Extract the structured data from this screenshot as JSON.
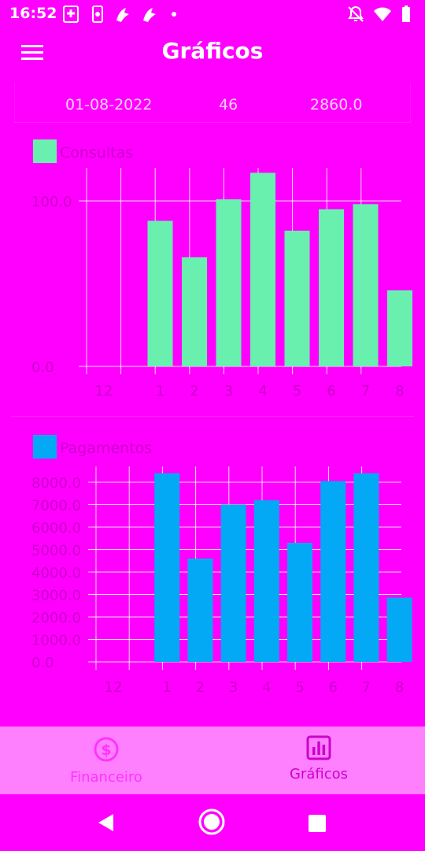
{
  "status_bar": {
    "time": "16:52",
    "left_icons": [
      "first-aid-notification-icon",
      "phone-notification-icon",
      "app-notification-icon",
      "app-notification-icon",
      "dot-icon"
    ],
    "right_icons": [
      "notifications-off-icon",
      "wifi-icon",
      "battery-icon"
    ]
  },
  "app_bar": {
    "title": "Gráficos"
  },
  "summary": {
    "date": "01-08-2022",
    "count": "46",
    "amount": "2860.0"
  },
  "chart_data": [
    {
      "type": "bar",
      "legend": "Consultas",
      "color": "#69f0ae",
      "categories": [
        "12",
        "1",
        "2",
        "3",
        "4",
        "5",
        "6",
        "7",
        "8"
      ],
      "values": [
        0,
        88,
        66,
        101,
        117,
        82,
        95,
        98,
        46
      ],
      "ylim": [
        0,
        120
      ],
      "yticks": [
        "0.0",
        "100.0"
      ],
      "grid": true
    },
    {
      "type": "bar",
      "legend": "Pagamentos",
      "color": "#03a9f4",
      "categories": [
        "12",
        "1",
        "2",
        "3",
        "4",
        "5",
        "6",
        "7",
        "8"
      ],
      "values": [
        0,
        8400,
        4600,
        7000,
        7200,
        5300,
        8050,
        8400,
        2860
      ],
      "ylim": [
        0,
        8700
      ],
      "yticks": [
        "0.0",
        "1000.0",
        "2000.0",
        "3000.0",
        "4000.0",
        "5000.0",
        "6000.0",
        "7000.0",
        "8000.0"
      ],
      "grid": true
    }
  ],
  "bottom_nav": {
    "items": [
      {
        "label": "Financeiro",
        "icon": "dollar-circle-icon",
        "active": false
      },
      {
        "label": "Gráficos",
        "icon": "bar-chart-icon",
        "active": true
      }
    ]
  },
  "system_nav": {
    "icons": [
      "back-icon",
      "home-icon",
      "recents-icon"
    ]
  }
}
